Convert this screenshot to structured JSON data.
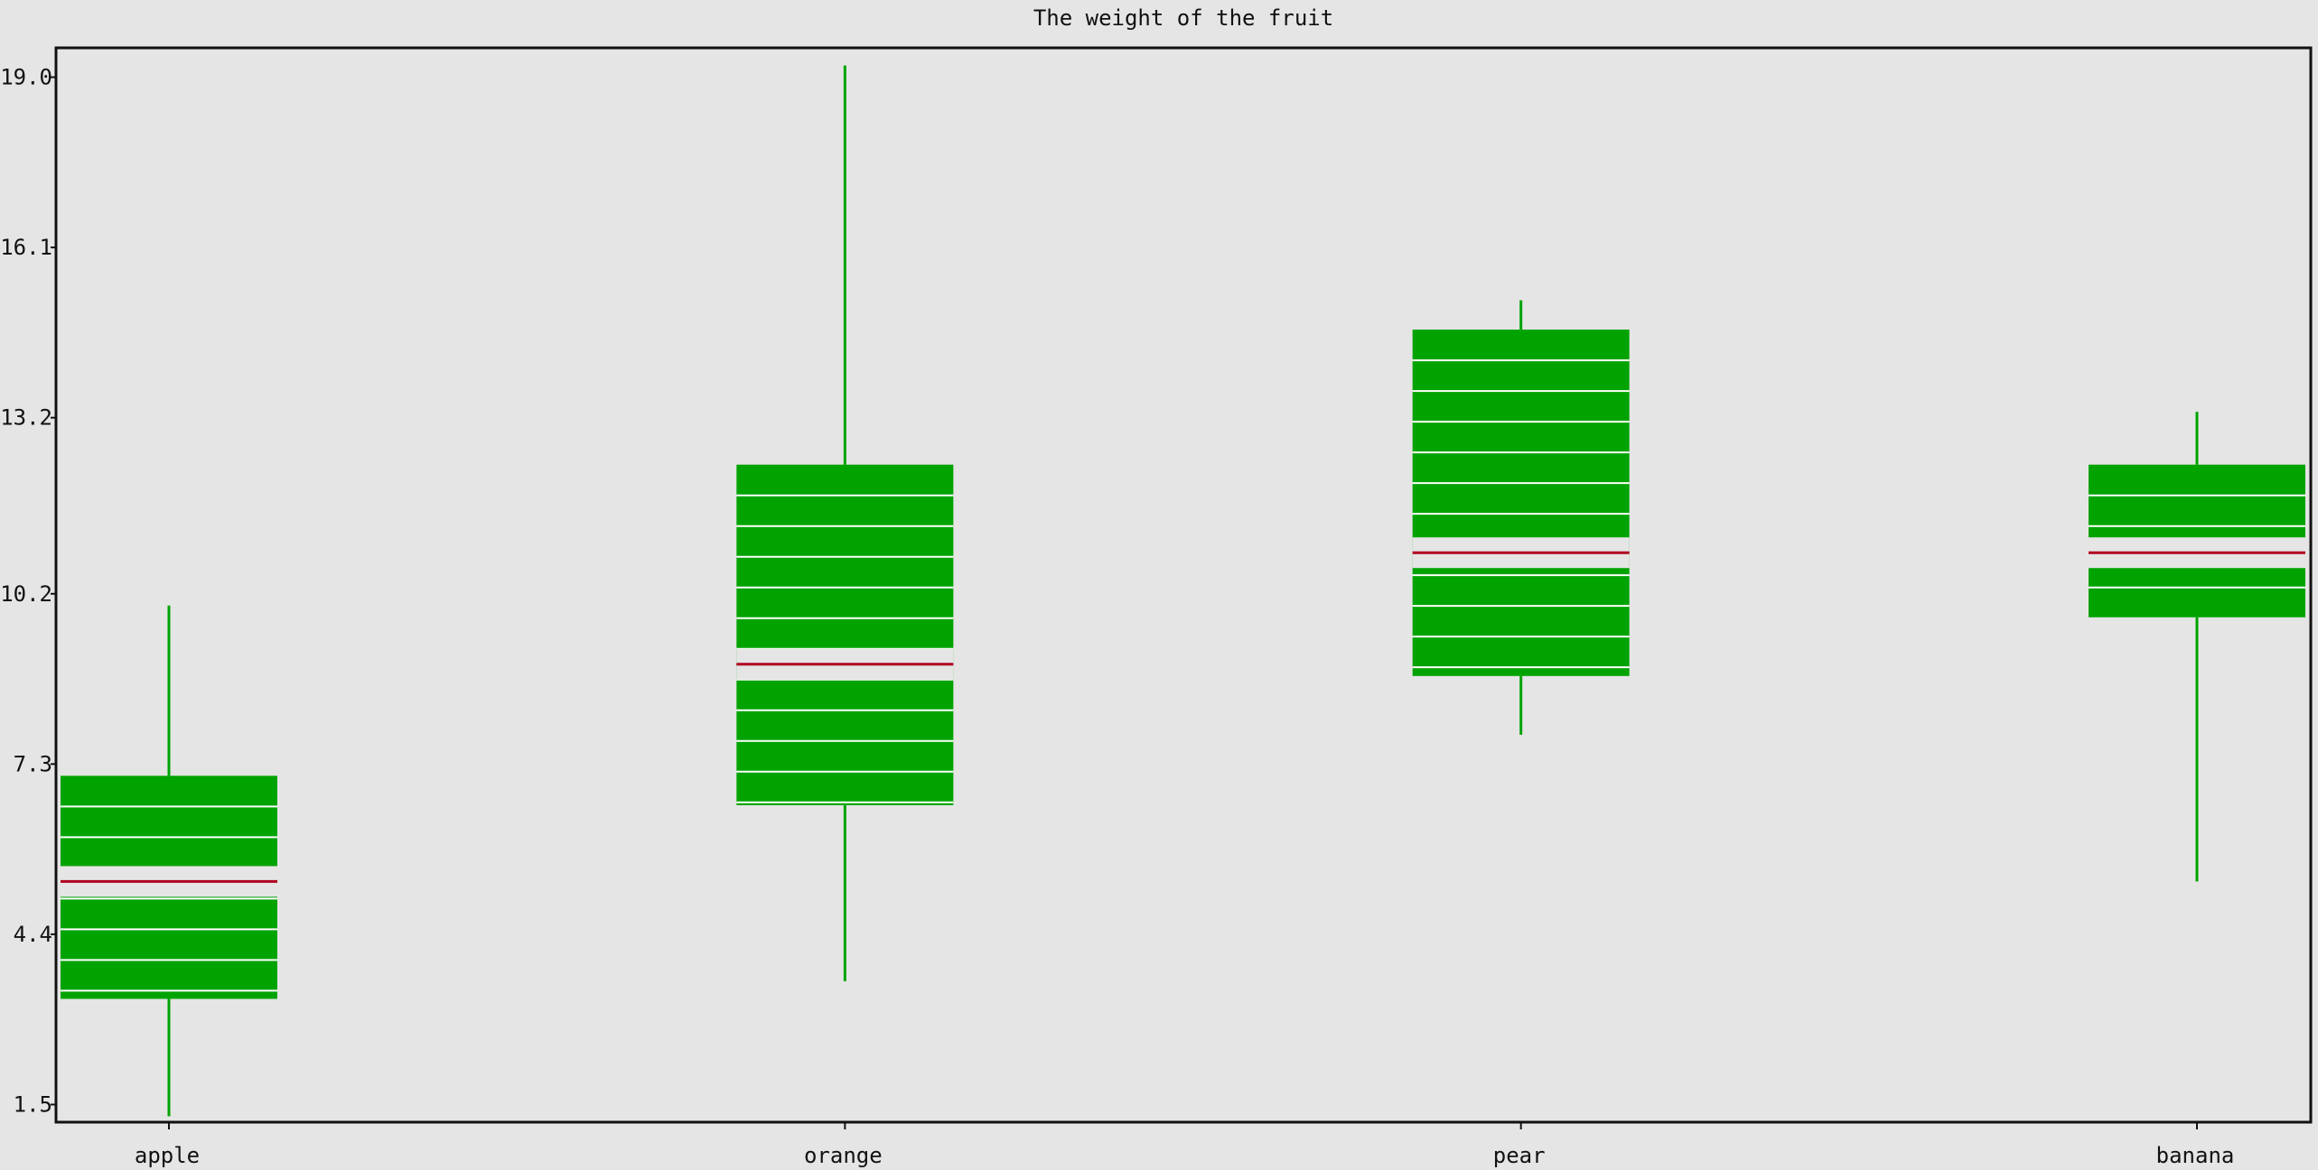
{
  "chart_data": {
    "type": "box",
    "title": "The weight of the fruit",
    "xlabel": "",
    "ylabel": "",
    "categories": [
      "apple",
      "orange",
      "pear",
      "banana"
    ],
    "boxes": [
      {
        "name": "apple",
        "whisker_low": 1.3,
        "q1": 3.3,
        "median": 5.3,
        "q3": 7.1,
        "whisker_high": 10.0
      },
      {
        "name": "orange",
        "whisker_low": 3.6,
        "q1": 6.6,
        "median": 9.0,
        "q3": 12.4,
        "whisker_high": 19.2
      },
      {
        "name": "pear",
        "whisker_low": 7.8,
        "q1": 8.8,
        "median": 10.9,
        "q3": 14.7,
        "whisker_high": 15.2
      },
      {
        "name": "banana",
        "whisker_low": 5.3,
        "q1": 9.8,
        "median": 10.9,
        "q3": 12.4,
        "whisker_high": 13.3
      }
    ],
    "yticks": [
      "1.5",
      "4.4",
      "7.3",
      "10.2",
      "13.2",
      "16.1",
      "19.0"
    ],
    "ylim": [
      1.2,
      19.5
    ],
    "grid": false,
    "colors": {
      "box": "#00a300",
      "median": "#b00020",
      "whisker": "#00a300",
      "stripe": "#ffffff",
      "frame": "#111111",
      "background": "#e5e5e5"
    }
  }
}
